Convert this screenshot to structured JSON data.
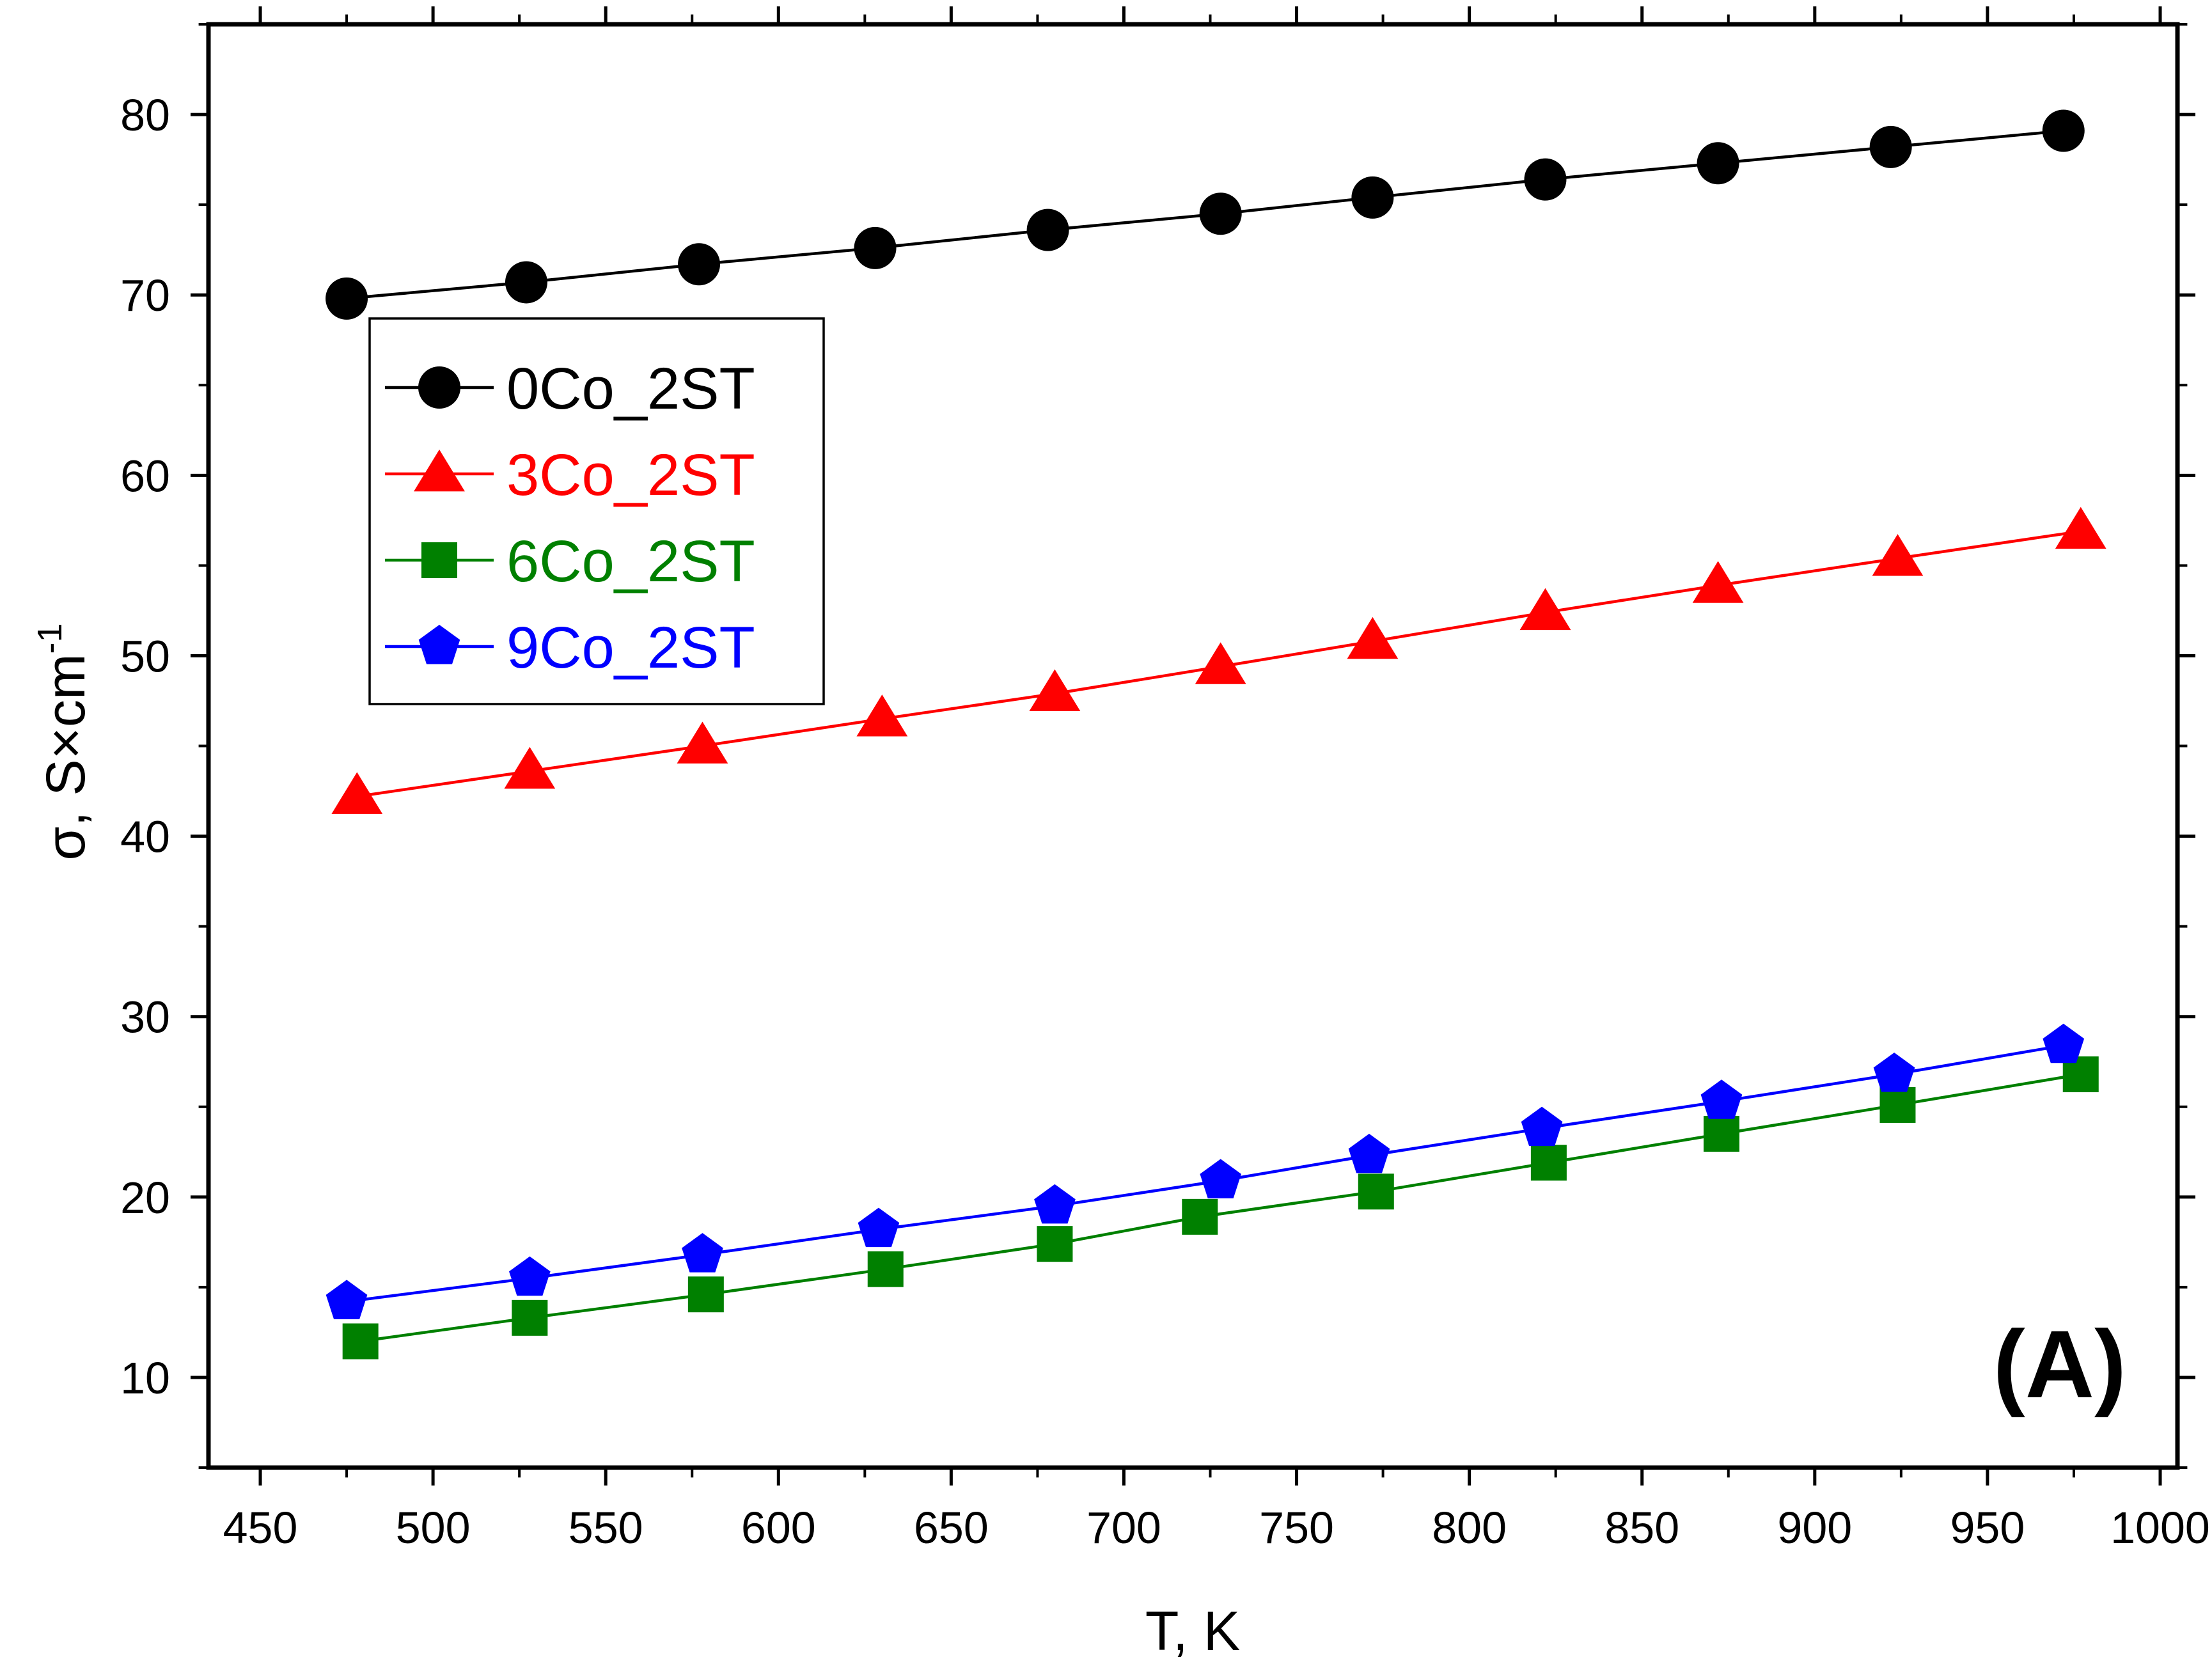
{
  "chart_data": {
    "type": "line",
    "title": "",
    "panel_label": "(A)",
    "xlabel": "T, K",
    "ylabel": {
      "prefix": "σ, S×cm",
      "superscript": "-1"
    },
    "xlim": [
      435,
      1005
    ],
    "ylim": [
      5,
      85
    ],
    "xticks": [
      450,
      500,
      550,
      600,
      650,
      700,
      750,
      800,
      850,
      900,
      950,
      1000
    ],
    "yticks": [
      10,
      20,
      30,
      40,
      50,
      60,
      70,
      80
    ],
    "grid": false,
    "legend_position": "top-left",
    "series": [
      {
        "name": "0Co_2ST",
        "color": "#000000",
        "marker": "circle",
        "x": [
          475,
          527,
          577,
          628,
          678,
          728,
          772,
          822,
          872,
          922,
          972
        ],
        "y": [
          69.8,
          70.7,
          71.7,
          72.6,
          73.6,
          74.5,
          75.4,
          76.4,
          77.3,
          78.2,
          79.1
        ]
      },
      {
        "name": "3Co_2ST",
        "color": "#ff0000",
        "marker": "triangle",
        "x": [
          478,
          528,
          578,
          630,
          680,
          728,
          772,
          822,
          872,
          924,
          977
        ],
        "y": [
          42.2,
          43.6,
          45.0,
          46.5,
          47.9,
          49.4,
          50.8,
          52.4,
          53.9,
          55.4,
          56.9
        ]
      },
      {
        "name": "6Co_2ST",
        "color": "#008000",
        "marker": "square",
        "x": [
          479,
          528,
          579,
          631,
          680,
          722,
          773,
          823,
          873,
          924,
          977
        ],
        "y": [
          12.0,
          13.3,
          14.6,
          16.0,
          17.4,
          18.9,
          20.3,
          21.9,
          23.5,
          25.1,
          26.8
        ]
      },
      {
        "name": "9Co_2ST",
        "color": "#0000ff",
        "marker": "pentagon",
        "x": [
          475,
          528,
          578,
          629,
          680,
          728,
          771,
          821,
          873,
          923,
          972
        ],
        "y": [
          14.2,
          15.5,
          16.8,
          18.2,
          19.5,
          20.9,
          22.3,
          23.8,
          25.3,
          26.8,
          28.4
        ]
      }
    ]
  }
}
